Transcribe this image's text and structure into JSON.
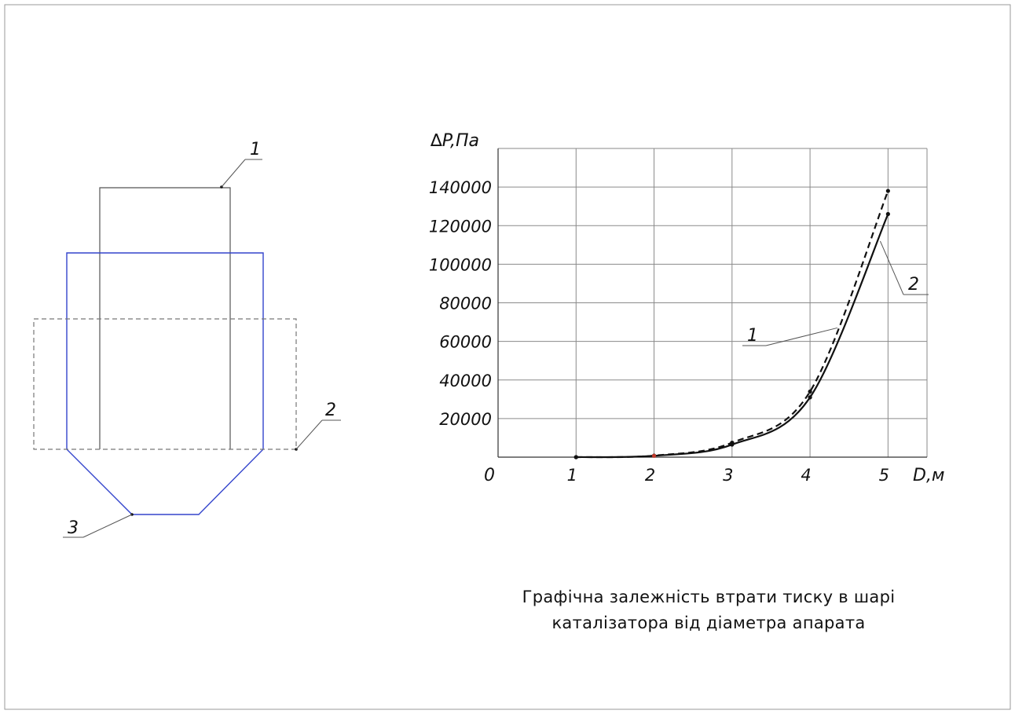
{
  "drawing": {
    "callouts": [
      "1",
      "2",
      "3"
    ],
    "colors": {
      "apparatus": "#3344cc",
      "inner": "#555555",
      "dashed_box": "#777777"
    }
  },
  "chart_data": {
    "type": "line",
    "ylabel": "∆P,Па",
    "xlabel": "D,м",
    "origin_label": "0",
    "x": [
      1,
      2,
      3,
      4,
      5
    ],
    "xlim": [
      0,
      5.5
    ],
    "ylim": [
      0,
      160000
    ],
    "x_ticks": [
      "1",
      "2",
      "3",
      "4",
      "5"
    ],
    "y_ticks": [
      20000,
      40000,
      60000,
      80000,
      100000,
      120000,
      140000
    ],
    "grid": true,
    "series": [
      {
        "name": "1",
        "style": "dashed",
        "values": [
          0,
          800,
          7500,
          34000,
          138000
        ]
      },
      {
        "name": "2",
        "style": "solid",
        "values": [
          0,
          700,
          6500,
          31000,
          126000
        ]
      }
    ],
    "callouts": [
      {
        "label": "1",
        "target_x": 4.35,
        "target_y": 67000
      },
      {
        "label": "2",
        "target_x": 4.9,
        "target_y": 112000
      }
    ],
    "caption_lines": [
      "Графічна залежність втрати тиску в шарі",
      "каталізатора від діаметра апарата"
    ]
  }
}
